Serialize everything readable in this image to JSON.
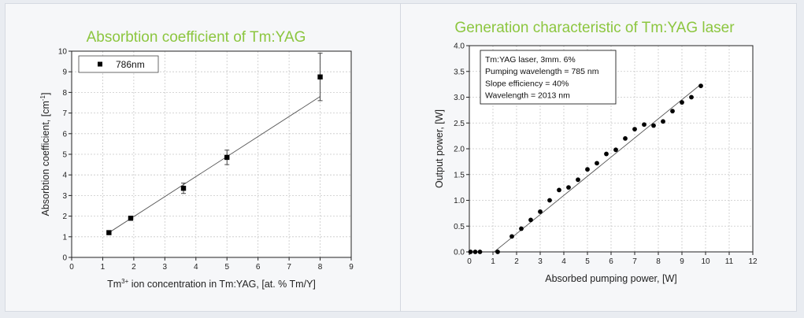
{
  "chart_data": [
    {
      "type": "scatter",
      "title": "Absorbtion coefficient of Tm:YAG",
      "xlabel": {
        "prefix": "Tm",
        "sup": "3+",
        "suffix": " ion concentration in Tm:YAG, [at. % Tm/Y]"
      },
      "ylabel": {
        "prefix": "Absorbtion coefficient, [cm",
        "sup": "-1",
        "suffix": "]"
      },
      "xlim": [
        0,
        9
      ],
      "ylim": [
        0,
        10
      ],
      "xticks": [
        0,
        1,
        2,
        3,
        4,
        5,
        6,
        7,
        8,
        9
      ],
      "yticks": [
        0,
        1,
        2,
        3,
        4,
        5,
        6,
        7,
        8,
        9,
        10
      ],
      "grid": true,
      "legend_position": "top-left",
      "series": [
        {
          "name": "786nm",
          "marker": "square",
          "points": [
            {
              "x": 1.2,
              "y": 1.2,
              "err": 0
            },
            {
              "x": 1.9,
              "y": 1.9,
              "err": 0.1
            },
            {
              "x": 3.6,
              "y": 3.35,
              "err": 0.25
            },
            {
              "x": 5.0,
              "y": 4.85,
              "err": 0.35
            },
            {
              "x": 8.0,
              "y": 8.75,
              "err": 1.15
            }
          ]
        }
      ],
      "fit_line": {
        "x": [
          1.2,
          8.0
        ],
        "y": [
          1.2,
          7.8
        ]
      }
    },
    {
      "type": "scatter",
      "title": "Generation characteristic of Tm:YAG laser",
      "xlabel": "Absorbed pumping power, [W]",
      "ylabel": "Output power, [W]",
      "xlim": [
        0,
        12
      ],
      "ylim": [
        0,
        4.0
      ],
      "xticks": [
        0,
        1,
        2,
        3,
        4,
        5,
        6,
        7,
        8,
        9,
        10,
        11,
        12
      ],
      "yticks": [
        "0.0",
        "0.5",
        "1.0",
        "1.5",
        "2.0",
        "2.5",
        "3.0",
        "3.5",
        "4.0"
      ],
      "grid": true,
      "info_box": [
        "Tm:YAG laser, 3mm. 6%",
        "Pumping wavelength = 785 nm",
        "Slope efficiency = 40%",
        "Wavelength = 2013 nm"
      ],
      "series": [
        {
          "marker": "circle",
          "points": [
            {
              "x": 0.05,
              "y": 0.0
            },
            {
              "x": 0.25,
              "y": 0.0
            },
            {
              "x": 0.45,
              "y": 0.0
            },
            {
              "x": 1.2,
              "y": 0.0
            },
            {
              "x": 1.8,
              "y": 0.3
            },
            {
              "x": 2.2,
              "y": 0.45
            },
            {
              "x": 2.6,
              "y": 0.62
            },
            {
              "x": 3.0,
              "y": 0.78
            },
            {
              "x": 3.4,
              "y": 1.0
            },
            {
              "x": 3.8,
              "y": 1.2
            },
            {
              "x": 4.2,
              "y": 1.25
            },
            {
              "x": 4.6,
              "y": 1.4
            },
            {
              "x": 5.0,
              "y": 1.6
            },
            {
              "x": 5.4,
              "y": 1.72
            },
            {
              "x": 5.8,
              "y": 1.9
            },
            {
              "x": 6.2,
              "y": 1.98
            },
            {
              "x": 6.6,
              "y": 2.2
            },
            {
              "x": 7.0,
              "y": 2.38
            },
            {
              "x": 7.4,
              "y": 2.47
            },
            {
              "x": 7.8,
              "y": 2.45
            },
            {
              "x": 8.2,
              "y": 2.53
            },
            {
              "x": 8.6,
              "y": 2.73
            },
            {
              "x": 9.0,
              "y": 2.9
            },
            {
              "x": 9.4,
              "y": 3.0
            },
            {
              "x": 9.8,
              "y": 3.22
            }
          ]
        }
      ],
      "fit_line": {
        "x": [
          1.05,
          9.8
        ],
        "y": [
          0.0,
          3.25
        ]
      }
    }
  ]
}
